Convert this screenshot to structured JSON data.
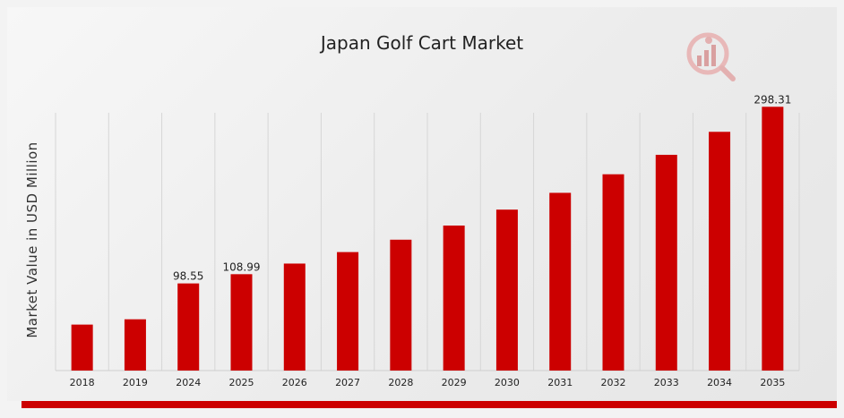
{
  "chart_data": {
    "type": "bar",
    "title": "Japan Golf Cart Market",
    "ylabel": "Market Value in USD Million",
    "xlabel": "",
    "categories": [
      "2018",
      "2019",
      "2024",
      "2025",
      "2026",
      "2027",
      "2028",
      "2029",
      "2030",
      "2031",
      "2032",
      "2033",
      "2034",
      "2035"
    ],
    "values": [
      52,
      58,
      98.55,
      108.99,
      121,
      134,
      148,
      164,
      182,
      201,
      222,
      244,
      270,
      298.31
    ],
    "data_labels": [
      "",
      "",
      "98.55",
      "108.99",
      "",
      "",
      "",
      "",
      "",
      "",
      "",
      "",
      "",
      "298.31"
    ],
    "ylim": [
      0,
      330
    ],
    "grid": true,
    "bar_color": "#cc0000"
  }
}
